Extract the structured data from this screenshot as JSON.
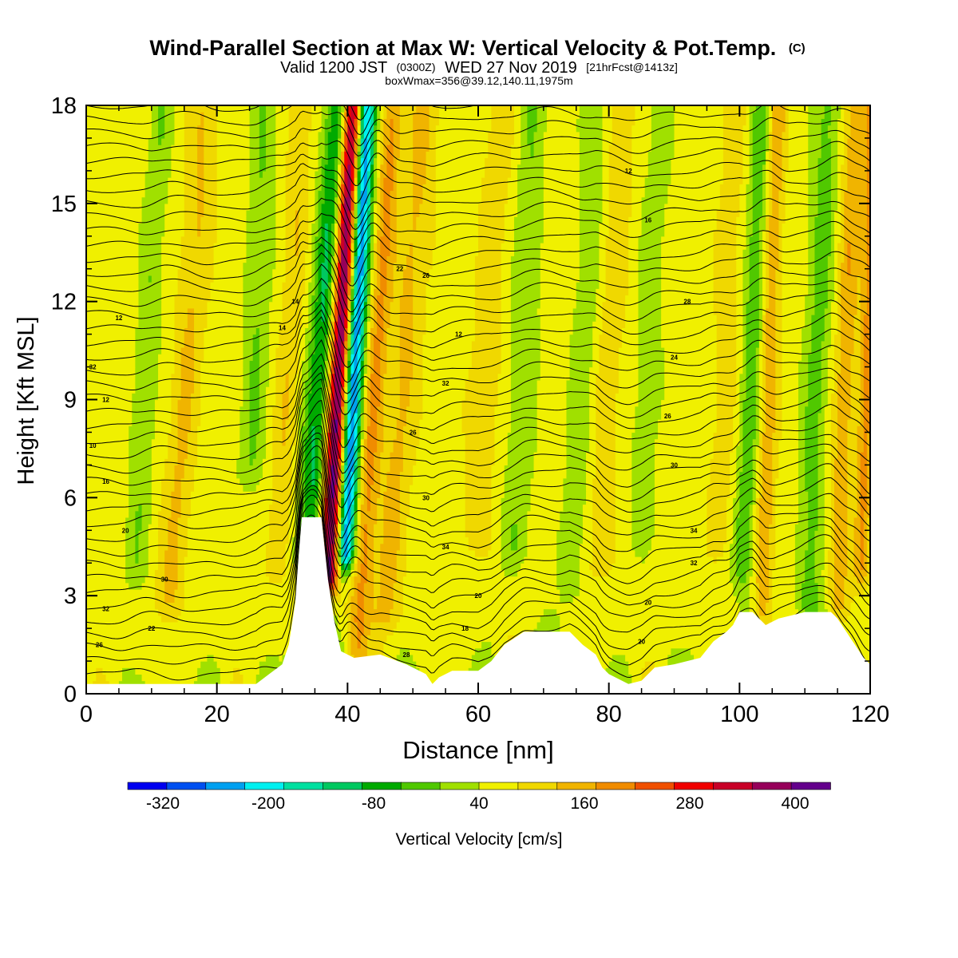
{
  "chart_data": {
    "type": "heatmap",
    "title": {
      "main": "Wind-Parallel Section at Max W: Vertical Velocity & Pot.Temp.",
      "main_suffix": "(C)",
      "line2_a": "Valid 1200 JST",
      "line2_b": "(0300Z)",
      "line2_c": "WED 27 Nov 2019",
      "line2_d": "[21hrFcst@1413z]",
      "line3": "boxWmax=356@39.12,140.11,1975m"
    },
    "xlabel": "Distance [nm]",
    "ylabel": "Height [Kft MSL]",
    "xlim": [
      0,
      120
    ],
    "ylim": [
      0,
      18
    ],
    "x_ticks": [
      0,
      20,
      40,
      60,
      80,
      100,
      120
    ],
    "y_ticks": [
      0,
      3,
      6,
      9,
      12,
      15,
      18
    ],
    "colorbar": {
      "label": "Vertical Velocity [cm/s]",
      "tick_labels": [
        "-320",
        "-200",
        "-80",
        "40",
        "160",
        "280",
        "400"
      ],
      "tick_values": [
        -320,
        -200,
        -80,
        40,
        160,
        280,
        400
      ],
      "min": -360,
      "max": 440,
      "step": 40,
      "colors": [
        "#0000f0",
        "#0050f0",
        "#00a0f0",
        "#00f0f0",
        "#00e0a0",
        "#00c860",
        "#00aa00",
        "#50c800",
        "#a0e000",
        "#f0f000",
        "#f0d800",
        "#f0b400",
        "#f08c00",
        "#f05000",
        "#f00000",
        "#c80028",
        "#96005a",
        "#64008c"
      ]
    },
    "theta_contour_labels": [
      "10",
      "12",
      "14",
      "16",
      "18",
      "20",
      "22",
      "24",
      "26",
      "28",
      "30",
      "32",
      "34"
    ],
    "terrain_height_kft": [
      [
        0,
        0.3
      ],
      [
        26,
        0.3
      ],
      [
        28,
        0.6
      ],
      [
        30,
        0.9
      ],
      [
        31,
        1.5
      ],
      [
        32,
        2.8
      ],
      [
        32.5,
        4.2
      ],
      [
        33,
        5.4
      ],
      [
        36,
        5.4
      ],
      [
        37,
        3.5
      ],
      [
        38,
        2.2
      ],
      [
        39,
        1.3
      ],
      [
        41,
        1.1
      ],
      [
        45,
        1.2
      ],
      [
        49,
        0.9
      ],
      [
        52,
        0.6
      ],
      [
        53,
        0.3
      ],
      [
        54,
        0.5
      ],
      [
        56,
        0.7
      ],
      [
        60,
        0.7
      ],
      [
        62,
        1.0
      ],
      [
        64,
        1.5
      ],
      [
        67,
        1.9
      ],
      [
        70,
        1.9
      ],
      [
        74,
        1.9
      ],
      [
        76,
        1.5
      ],
      [
        78,
        1.2
      ],
      [
        79,
        0.8
      ],
      [
        80,
        0.6
      ],
      [
        81,
        0.5
      ],
      [
        83,
        0.3
      ],
      [
        85,
        0.4
      ],
      [
        87,
        0.8
      ],
      [
        90,
        0.9
      ],
      [
        94,
        1.1
      ],
      [
        96,
        1.6
      ],
      [
        98,
        1.9
      ],
      [
        99,
        2.1
      ],
      [
        100,
        2.5
      ],
      [
        102,
        2.5
      ],
      [
        104,
        2.1
      ],
      [
        106,
        2.3
      ],
      [
        108,
        2.4
      ],
      [
        110,
        2.5
      ],
      [
        114,
        2.5
      ],
      [
        115,
        2.3
      ],
      [
        116,
        2.0
      ],
      [
        117,
        1.7
      ],
      [
        118,
        1.4
      ],
      [
        119,
        1.1
      ],
      [
        120,
        0.9
      ]
    ],
    "wave_plumes": [
      {
        "x": 37.8,
        "lean": 0.26,
        "width": 1.6,
        "amp": 350,
        "bottom": 3.8
      },
      {
        "x": 40.0,
        "lean": 0.24,
        "width": 1.5,
        "amp": -330,
        "bottom": 4.4
      },
      {
        "x": 34.5,
        "lean": 0.34,
        "width": 2.0,
        "amp": -150,
        "bottom": 4.5
      },
      {
        "x": 43.0,
        "lean": 0.33,
        "width": 1.6,
        "amp": 110,
        "bottom": 1.0
      },
      {
        "x": 47.0,
        "lean": 0.4,
        "width": 2.4,
        "amp": 70,
        "bottom": 2.5
      },
      {
        "x": 14.0,
        "lean": 0.35,
        "width": 2.2,
        "amp": 65,
        "bottom": 3.0
      },
      {
        "x": 8.0,
        "lean": 0.3,
        "width": 1.8,
        "amp": -55,
        "bottom": 4.0
      },
      {
        "x": 25.0,
        "lean": 0.2,
        "width": 2.0,
        "amp": -60,
        "bottom": 7.0
      },
      {
        "x": 30.0,
        "lean": 0.25,
        "width": 1.8,
        "amp": 55,
        "bottom": 4.0
      },
      {
        "x": 60.0,
        "lean": 0.3,
        "width": 2.4,
        "amp": 45,
        "bottom": 5.0
      },
      {
        "x": 66.0,
        "lean": 0.2,
        "width": 2.2,
        "amp": -55,
        "bottom": 4.5
      },
      {
        "x": 75.0,
        "lean": 0.25,
        "width": 2.0,
        "amp": -50,
        "bottom": 3.5
      },
      {
        "x": 79.0,
        "lean": 0.25,
        "width": 2.2,
        "amp": 45,
        "bottom": 4.0
      },
      {
        "x": 85.0,
        "lean": 0.25,
        "width": 2.2,
        "amp": -40,
        "bottom": 5.0
      },
      {
        "x": 97.0,
        "lean": 0.2,
        "width": 2.0,
        "amp": 40,
        "bottom": 5.0
      },
      {
        "x": 101.0,
        "lean": 0.2,
        "width": 1.6,
        "amp": -90,
        "bottom": 4.0
      },
      {
        "x": 104.0,
        "lean": 0.15,
        "width": 1.4,
        "amp": 90,
        "bottom": 2.5
      },
      {
        "x": 111.0,
        "lean": 0.2,
        "width": 2.0,
        "amp": -75,
        "bottom": 3.0
      },
      {
        "x": 115.5,
        "lean": 0.18,
        "width": 1.6,
        "amp": 90,
        "bottom": 3.0
      },
      {
        "x": 119.0,
        "lean": 0.12,
        "width": 1.2,
        "amp": 110,
        "bottom": 4.0
      }
    ]
  }
}
